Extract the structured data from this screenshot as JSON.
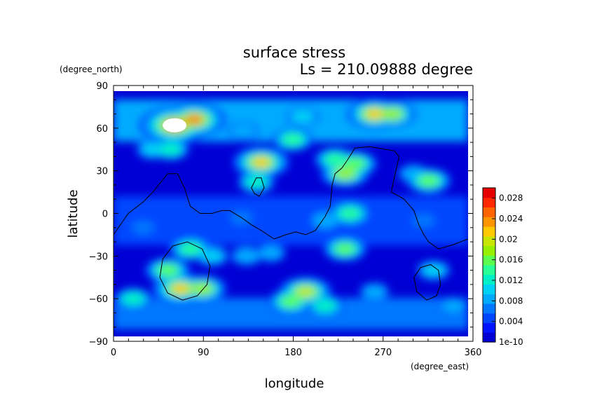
{
  "chart_data": {
    "type": "heatmap",
    "title": "surface stress",
    "subtitle": "Ls = 210.09888 degree",
    "xlabel": "longitude",
    "ylabel": "latitude",
    "x_unit": "(degree_east)",
    "y_unit": "(degree_north)",
    "xlim": [
      0,
      360
    ],
    "ylim": [
      -90,
      90
    ],
    "x_ticks": [
      "0",
      "90",
      "180",
      "270",
      "360"
    ],
    "y_ticks": [
      "90",
      "60",
      "30",
      "0",
      "−30",
      "−60",
      "−90"
    ],
    "colorbar": {
      "range": [
        0,
        0.03
      ],
      "tick_labels": [
        "0.028",
        "0.024",
        "0.02",
        "0.016",
        "0.012",
        "0.008",
        "0.004",
        "1e-10"
      ],
      "colors": [
        "#0000d4",
        "#0014ff",
        "#0046ff",
        "#0078ff",
        "#00aaff",
        "#00d2f5",
        "#00f0c8",
        "#28ff96",
        "#5aff50",
        "#96f000",
        "#c8e600",
        "#ffc800",
        "#ff9600",
        "#ff6400",
        "#ff2800",
        "#e60000"
      ]
    },
    "hotspots": [
      {
        "lon": 62,
        "lat": 62,
        "value": 0.03
      },
      {
        "lon": 82,
        "lat": 66,
        "value": 0.026
      },
      {
        "lon": 40,
        "lat": 45,
        "value": 0.01
      },
      {
        "lon": 58,
        "lat": 45,
        "value": 0.012
      },
      {
        "lon": 265,
        "lat": 70,
        "value": 0.022
      },
      {
        "lon": 283,
        "lat": 70,
        "value": 0.018
      },
      {
        "lon": 150,
        "lat": 36,
        "value": 0.022
      },
      {
        "lon": 145,
        "lat": 22,
        "value": 0.012
      },
      {
        "lon": 182,
        "lat": 52,
        "value": 0.014
      },
      {
        "lon": 192,
        "lat": 68,
        "value": 0.01
      },
      {
        "lon": 132,
        "lat": 58,
        "value": 0.009
      },
      {
        "lon": 225,
        "lat": 38,
        "value": 0.014
      },
      {
        "lon": 235,
        "lat": 28,
        "value": 0.018
      },
      {
        "lon": 245,
        "lat": 35,
        "value": 0.016
      },
      {
        "lon": 240,
        "lat": 0,
        "value": 0.014
      },
      {
        "lon": 235,
        "lat": -25,
        "value": 0.015
      },
      {
        "lon": 215,
        "lat": -5,
        "value": 0.009
      },
      {
        "lon": 320,
        "lat": 23,
        "value": 0.016
      },
      {
        "lon": 305,
        "lat": 28,
        "value": 0.009
      },
      {
        "lon": 55,
        "lat": -40,
        "value": 0.016
      },
      {
        "lon": 68,
        "lat": -53,
        "value": 0.022
      },
      {
        "lon": 90,
        "lat": -53,
        "value": 0.018
      },
      {
        "lon": 100,
        "lat": -30,
        "value": 0.01
      },
      {
        "lon": 78,
        "lat": -25,
        "value": 0.014
      },
      {
        "lon": 195,
        "lat": -55,
        "value": 0.02
      },
      {
        "lon": 180,
        "lat": -62,
        "value": 0.016
      },
      {
        "lon": 215,
        "lat": -65,
        "value": 0.012
      },
      {
        "lon": 135,
        "lat": -30,
        "value": 0.009
      },
      {
        "lon": 160,
        "lat": -28,
        "value": 0.008
      },
      {
        "lon": 265,
        "lat": -55,
        "value": 0.008
      },
      {
        "lon": 20,
        "lat": -60,
        "value": 0.012
      },
      {
        "lon": 345,
        "lat": -65,
        "value": 0.008
      },
      {
        "lon": 325,
        "lat": -40,
        "value": 0.01
      },
      {
        "lon": 30,
        "lat": -10,
        "value": 0.007
      },
      {
        "lon": 130,
        "lat": -3,
        "value": 0.007
      },
      {
        "lon": 315,
        "lat": -5,
        "value": 0.007
      }
    ],
    "contours": [
      {
        "name": "equatorial-boundary",
        "closed": false,
        "points": [
          [
            0,
            -15
          ],
          [
            15,
            0
          ],
          [
            30,
            8
          ],
          [
            40,
            15
          ],
          [
            55,
            28
          ],
          [
            65,
            28
          ],
          [
            72,
            18
          ],
          [
            78,
            5
          ],
          [
            88,
            0
          ],
          [
            100,
            0
          ],
          [
            110,
            2
          ],
          [
            118,
            2
          ],
          [
            130,
            -3
          ],
          [
            140,
            -8
          ],
          [
            150,
            -12
          ],
          [
            163,
            -18
          ],
          [
            175,
            -15
          ],
          [
            185,
            -13
          ],
          [
            195,
            -15
          ],
          [
            205,
            -12
          ],
          [
            215,
            -2
          ],
          [
            220,
            5
          ],
          [
            222,
            20
          ],
          [
            225,
            28
          ],
          [
            232,
            32
          ],
          [
            238,
            38
          ],
          [
            245,
            46
          ],
          [
            260,
            47
          ],
          [
            285,
            44
          ],
          [
            290,
            40
          ],
          [
            285,
            25
          ],
          [
            282,
            15
          ],
          [
            290,
            12
          ],
          [
            295,
            10
          ],
          [
            305,
            2
          ],
          [
            310,
            -8
          ],
          [
            315,
            -15
          ],
          [
            320,
            -20
          ],
          [
            330,
            -25
          ],
          [
            345,
            -22
          ],
          [
            360,
            -18
          ]
        ]
      },
      {
        "name": "north-ellipse",
        "closed": true,
        "points": [
          [
            140,
            18
          ],
          [
            145,
            25
          ],
          [
            150,
            25
          ],
          [
            153,
            18
          ],
          [
            148,
            12
          ],
          [
            143,
            14
          ]
        ]
      },
      {
        "name": "south-ellipse-west",
        "closed": true,
        "points": [
          [
            50,
            -32
          ],
          [
            60,
            -23
          ],
          [
            75,
            -20
          ],
          [
            90,
            -25
          ],
          [
            98,
            -37
          ],
          [
            95,
            -50
          ],
          [
            85,
            -58
          ],
          [
            70,
            -61
          ],
          [
            55,
            -56
          ],
          [
            47,
            -45
          ]
        ]
      },
      {
        "name": "south-ellipse-east",
        "closed": true,
        "points": [
          [
            305,
            -45
          ],
          [
            312,
            -38
          ],
          [
            322,
            -36
          ],
          [
            330,
            -40
          ],
          [
            332,
            -50
          ],
          [
            328,
            -58
          ],
          [
            318,
            -61
          ],
          [
            308,
            -55
          ]
        ]
      }
    ]
  }
}
